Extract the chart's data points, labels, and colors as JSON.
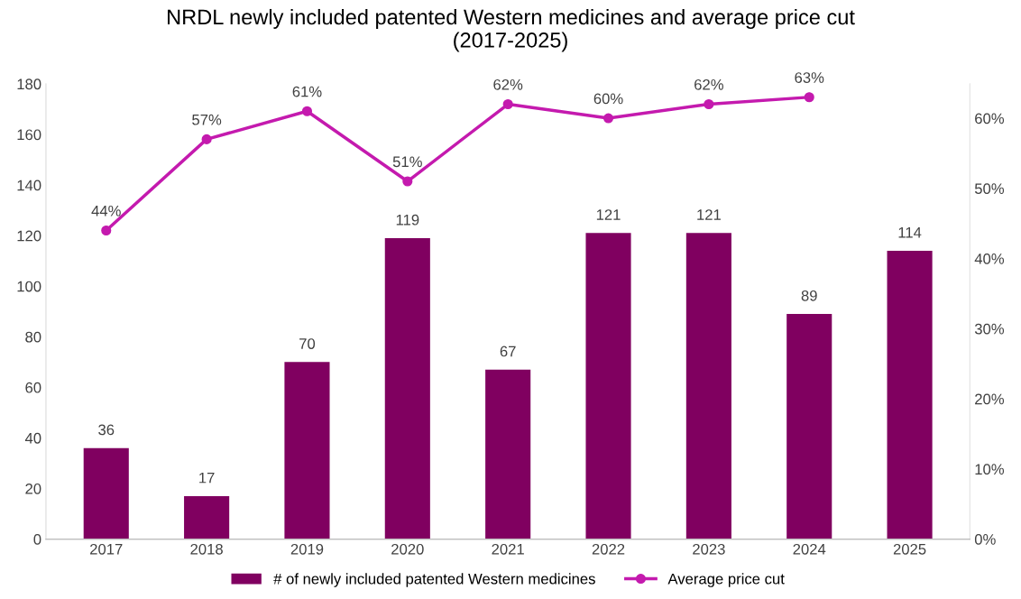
{
  "chart_data": {
    "type": "bar",
    "title": "NRDL newly included patented Western medicines and average price cut\n(2017-2025)",
    "categories": [
      "2017",
      "2018",
      "2019",
      "2020",
      "2021",
      "2022",
      "2023",
      "2024",
      "2025"
    ],
    "series": [
      {
        "name": "# of newly included patented Western medicines",
        "color": "#800060",
        "values": [
          36,
          17,
          70,
          119,
          67,
          121,
          121,
          89,
          114
        ],
        "value_labels": [
          "36",
          "17",
          "70",
          "119",
          "67",
          "121",
          "121",
          "89",
          "114"
        ]
      },
      {
        "name": "Average price cut",
        "type": "line",
        "axis": "y2",
        "color": "#c41aae",
        "marker": "circle",
        "values": [
          44,
          57,
          61,
          51,
          62,
          60,
          62,
          63,
          null
        ],
        "value_labels": [
          "44%",
          "57%",
          "61%",
          "51%",
          "62%",
          "60%",
          "62%",
          "63%",
          null
        ]
      }
    ],
    "ylim": [
      0,
      180
    ],
    "yticks": [
      0,
      20,
      40,
      60,
      80,
      100,
      120,
      140,
      160,
      180
    ],
    "y2lim": [
      0,
      64.9
    ],
    "y2ticks": [
      {
        "value": 0,
        "label": "0%"
      },
      {
        "value": 10,
        "label": "10%"
      },
      {
        "value": 20,
        "label": "20%"
      },
      {
        "value": 30,
        "label": "30%"
      },
      {
        "value": 40,
        "label": "40%"
      },
      {
        "value": 50,
        "label": "50%"
      },
      {
        "value": 60,
        "label": "60%"
      }
    ],
    "grid": false,
    "legend": "bottom"
  }
}
